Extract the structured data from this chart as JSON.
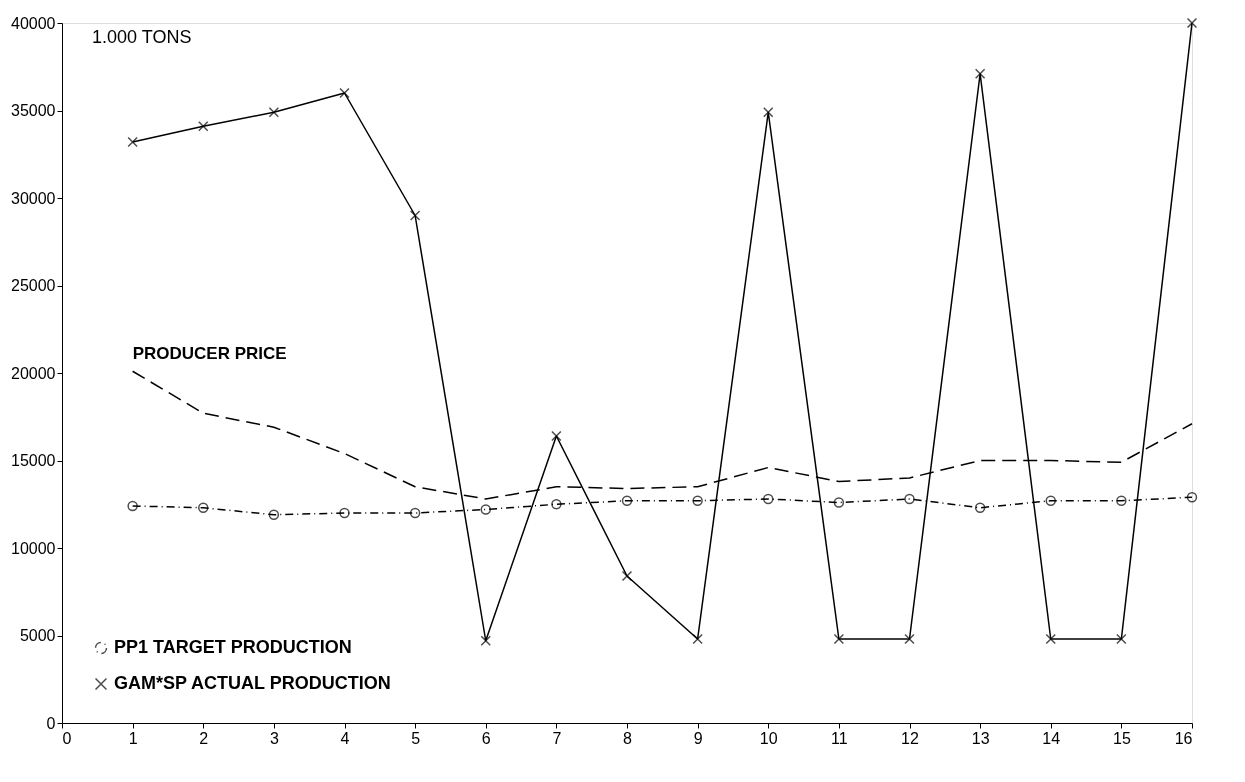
{
  "chart_data": {
    "type": "line",
    "ylabel": "1.000 TONS",
    "x": [
      1,
      2,
      3,
      4,
      5,
      6,
      7,
      8,
      9,
      10,
      11,
      12,
      13,
      14,
      15,
      16
    ],
    "series": [
      {
        "name": "PP1 TARGET PRODUCTION",
        "color": "#000000",
        "marker": "circle",
        "line_style": "dotted",
        "values": [
          12400,
          12300,
          11900,
          12000,
          12000,
          12200,
          12500,
          12700,
          12700,
          12800,
          12600,
          12800,
          12300,
          12700,
          12700,
          12900
        ]
      },
      {
        "name": "GAM*SP ACTUAL PRODUCTION",
        "color": "#000000",
        "marker": "cross",
        "line_style": "solid",
        "values": [
          33200,
          34100,
          34900,
          36000,
          29000,
          4700,
          16400,
          8400,
          4800,
          34900,
          4800,
          4800,
          37100,
          4800,
          4800,
          40000
        ]
      },
      {
        "color": "#000000",
        "line_style": "dashed",
        "values": [
          20100,
          17700,
          16900,
          15400,
          13500,
          12800,
          13500,
          13400,
          13500,
          14600,
          13800,
          14000,
          15000,
          15000,
          14900,
          17100
        ]
      }
    ],
    "annotations": [
      {
        "text": "PRODUCER PRICE",
        "x": 1,
        "y": 20100
      }
    ],
    "xlim": [
      0,
      16
    ],
    "xticks": [
      0,
      1,
      2,
      3,
      4,
      5,
      6,
      7,
      8,
      9,
      10,
      11,
      12,
      13,
      14,
      15,
      16
    ],
    "ylim": [
      0,
      40000
    ],
    "yticks": [
      0,
      5000,
      10000,
      15000,
      20000,
      25000,
      30000,
      35000,
      40000
    ],
    "grid": false,
    "legend": "bottom left"
  }
}
